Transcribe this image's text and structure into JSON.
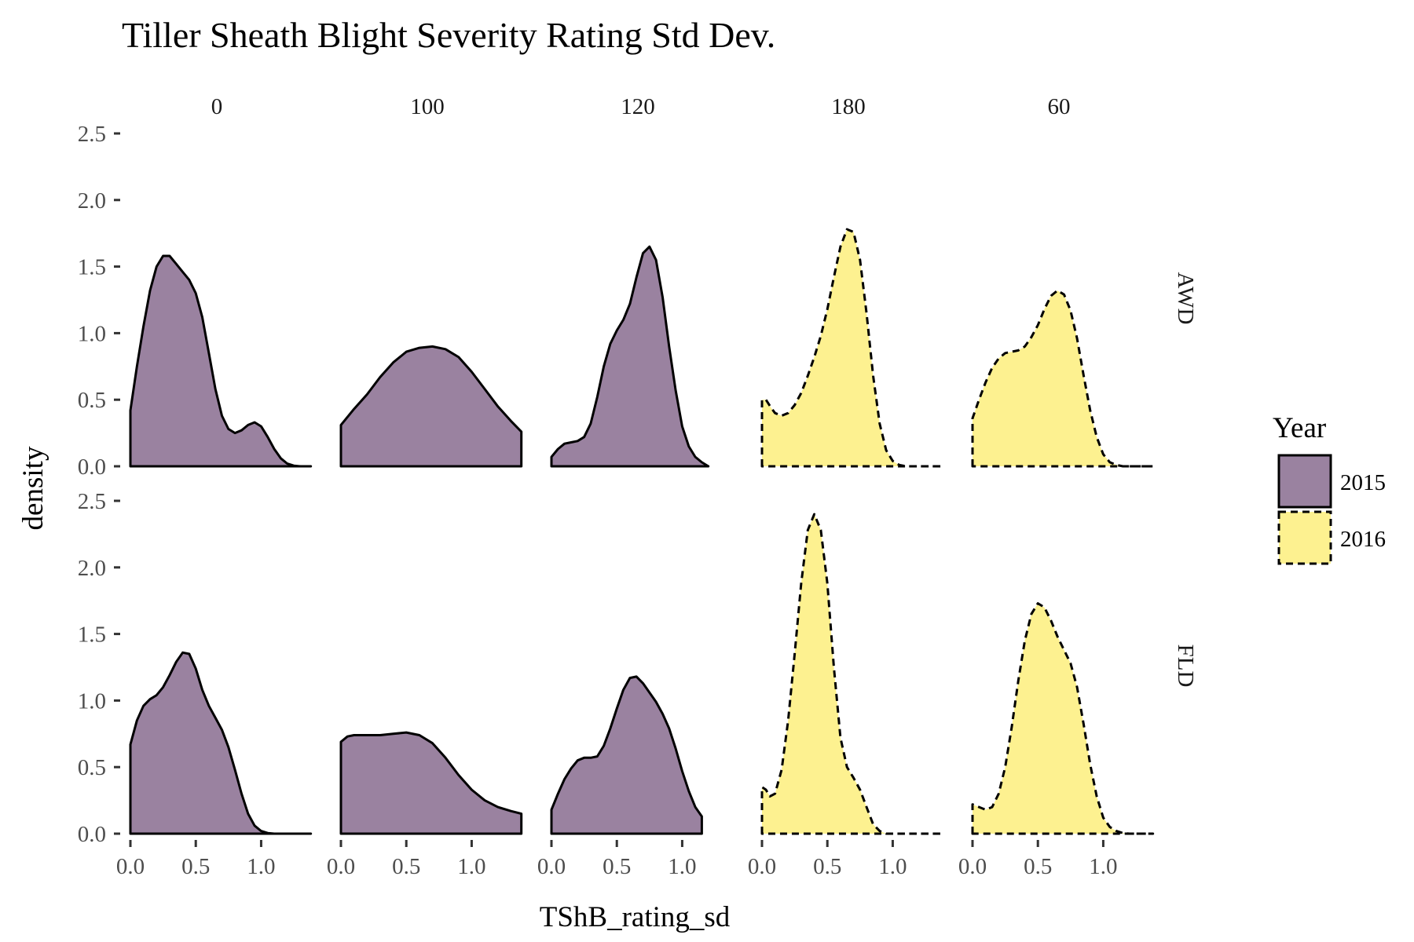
{
  "chart_data": {
    "type": "area",
    "subtype": "faceted-density",
    "title": "Tiller Sheath Blight Severity Rating Std Dev.",
    "xlabel": "TShB_rating_sd",
    "ylabel": "density",
    "xlim": [
      0,
      1.4
    ],
    "ylim": [
      0,
      2.5
    ],
    "x_ticks": [
      0.0,
      0.5,
      1.0
    ],
    "x_tick_labels": [
      "0.0",
      "0.5",
      "1.0"
    ],
    "y_ticks": [
      0.0,
      0.5,
      1.0,
      1.5,
      2.0,
      2.5
    ],
    "y_tick_labels": [
      "0.0",
      "0.5",
      "1.0",
      "1.5",
      "2.0",
      "2.5"
    ],
    "col_facets": [
      "0",
      "100",
      "120",
      "180",
      "60"
    ],
    "row_facets": [
      "AWD",
      "FLD"
    ],
    "grid": false,
    "legend": {
      "title": "Year",
      "position": "right",
      "entries": [
        {
          "label": "2015",
          "fill": "#9a82a0",
          "linestyle": "solid"
        },
        {
          "label": "2016",
          "fill": "#fdf190",
          "linestyle": "dashed"
        }
      ]
    },
    "panels": [
      {
        "row": "AWD",
        "col": "0",
        "year": "2015",
        "points": [
          [
            0.0,
            0.42
          ],
          [
            0.05,
            0.75
          ],
          [
            0.1,
            1.05
          ],
          [
            0.15,
            1.32
          ],
          [
            0.2,
            1.5
          ],
          [
            0.25,
            1.58
          ],
          [
            0.3,
            1.58
          ],
          [
            0.35,
            1.52
          ],
          [
            0.4,
            1.46
          ],
          [
            0.45,
            1.4
          ],
          [
            0.5,
            1.3
          ],
          [
            0.55,
            1.12
          ],
          [
            0.6,
            0.85
          ],
          [
            0.65,
            0.58
          ],
          [
            0.7,
            0.38
          ],
          [
            0.75,
            0.28
          ],
          [
            0.8,
            0.25
          ],
          [
            0.85,
            0.27
          ],
          [
            0.9,
            0.31
          ],
          [
            0.95,
            0.33
          ],
          [
            1.0,
            0.3
          ],
          [
            1.05,
            0.22
          ],
          [
            1.1,
            0.13
          ],
          [
            1.15,
            0.06
          ],
          [
            1.2,
            0.02
          ],
          [
            1.25,
            0.005
          ],
          [
            1.3,
            0.0
          ],
          [
            1.38,
            0.0
          ]
        ]
      },
      {
        "row": "AWD",
        "col": "100",
        "year": "2015",
        "points": [
          [
            0.0,
            0.31
          ],
          [
            0.1,
            0.43
          ],
          [
            0.2,
            0.54
          ],
          [
            0.3,
            0.67
          ],
          [
            0.4,
            0.78
          ],
          [
            0.5,
            0.86
          ],
          [
            0.6,
            0.89
          ],
          [
            0.7,
            0.9
          ],
          [
            0.8,
            0.88
          ],
          [
            0.9,
            0.82
          ],
          [
            1.0,
            0.71
          ],
          [
            1.1,
            0.58
          ],
          [
            1.2,
            0.45
          ],
          [
            1.3,
            0.34
          ],
          [
            1.38,
            0.26
          ]
        ]
      },
      {
        "row": "AWD",
        "col": "120",
        "year": "2015",
        "points": [
          [
            0.0,
            0.07
          ],
          [
            0.05,
            0.13
          ],
          [
            0.1,
            0.17
          ],
          [
            0.15,
            0.18
          ],
          [
            0.2,
            0.19
          ],
          [
            0.25,
            0.22
          ],
          [
            0.3,
            0.32
          ],
          [
            0.35,
            0.52
          ],
          [
            0.4,
            0.75
          ],
          [
            0.45,
            0.92
          ],
          [
            0.5,
            1.02
          ],
          [
            0.55,
            1.1
          ],
          [
            0.6,
            1.22
          ],
          [
            0.65,
            1.42
          ],
          [
            0.7,
            1.6
          ],
          [
            0.75,
            1.65
          ],
          [
            0.8,
            1.55
          ],
          [
            0.85,
            1.27
          ],
          [
            0.9,
            0.9
          ],
          [
            0.95,
            0.57
          ],
          [
            1.0,
            0.3
          ],
          [
            1.05,
            0.15
          ],
          [
            1.1,
            0.07
          ],
          [
            1.15,
            0.03
          ],
          [
            1.2,
            0.0
          ]
        ]
      },
      {
        "row": "AWD",
        "col": "180",
        "year": "2016",
        "points": [
          [
            0.0,
            0.5
          ],
          [
            0.03,
            0.5
          ],
          [
            0.07,
            0.44
          ],
          [
            0.1,
            0.4
          ],
          [
            0.15,
            0.38
          ],
          [
            0.2,
            0.4
          ],
          [
            0.25,
            0.46
          ],
          [
            0.3,
            0.55
          ],
          [
            0.35,
            0.68
          ],
          [
            0.4,
            0.82
          ],
          [
            0.45,
            0.98
          ],
          [
            0.5,
            1.18
          ],
          [
            0.55,
            1.42
          ],
          [
            0.6,
            1.65
          ],
          [
            0.65,
            1.78
          ],
          [
            0.7,
            1.76
          ],
          [
            0.75,
            1.55
          ],
          [
            0.8,
            1.15
          ],
          [
            0.85,
            0.68
          ],
          [
            0.9,
            0.32
          ],
          [
            0.95,
            0.12
          ],
          [
            1.0,
            0.04
          ],
          [
            1.05,
            0.01
          ],
          [
            1.1,
            0.0
          ],
          [
            1.38,
            0.0
          ]
        ]
      },
      {
        "row": "AWD",
        "col": "60",
        "year": "2016",
        "points": [
          [
            0.0,
            0.36
          ],
          [
            0.05,
            0.5
          ],
          [
            0.1,
            0.63
          ],
          [
            0.15,
            0.74
          ],
          [
            0.2,
            0.81
          ],
          [
            0.25,
            0.85
          ],
          [
            0.3,
            0.86
          ],
          [
            0.35,
            0.87
          ],
          [
            0.4,
            0.9
          ],
          [
            0.45,
            0.97
          ],
          [
            0.5,
            1.06
          ],
          [
            0.55,
            1.18
          ],
          [
            0.6,
            1.28
          ],
          [
            0.65,
            1.32
          ],
          [
            0.7,
            1.29
          ],
          [
            0.75,
            1.17
          ],
          [
            0.8,
            0.96
          ],
          [
            0.85,
            0.68
          ],
          [
            0.9,
            0.42
          ],
          [
            0.95,
            0.22
          ],
          [
            1.0,
            0.09
          ],
          [
            1.05,
            0.03
          ],
          [
            1.1,
            0.01
          ],
          [
            1.15,
            0.0
          ],
          [
            1.38,
            0.0
          ]
        ]
      },
      {
        "row": "FLD",
        "col": "0",
        "year": "2015",
        "points": [
          [
            0.0,
            0.67
          ],
          [
            0.05,
            0.85
          ],
          [
            0.1,
            0.96
          ],
          [
            0.15,
            1.01
          ],
          [
            0.2,
            1.04
          ],
          [
            0.25,
            1.1
          ],
          [
            0.3,
            1.19
          ],
          [
            0.35,
            1.29
          ],
          [
            0.4,
            1.36
          ],
          [
            0.45,
            1.35
          ],
          [
            0.5,
            1.24
          ],
          [
            0.55,
            1.08
          ],
          [
            0.6,
            0.96
          ],
          [
            0.65,
            0.87
          ],
          [
            0.7,
            0.78
          ],
          [
            0.75,
            0.65
          ],
          [
            0.8,
            0.48
          ],
          [
            0.85,
            0.3
          ],
          [
            0.9,
            0.15
          ],
          [
            0.95,
            0.06
          ],
          [
            1.0,
            0.02
          ],
          [
            1.05,
            0.005
          ],
          [
            1.1,
            0.0
          ],
          [
            1.38,
            0.0
          ]
        ]
      },
      {
        "row": "FLD",
        "col": "100",
        "year": "2015",
        "points": [
          [
            0.0,
            0.69
          ],
          [
            0.05,
            0.73
          ],
          [
            0.1,
            0.74
          ],
          [
            0.2,
            0.74
          ],
          [
            0.3,
            0.74
          ],
          [
            0.4,
            0.75
          ],
          [
            0.5,
            0.76
          ],
          [
            0.6,
            0.74
          ],
          [
            0.7,
            0.68
          ],
          [
            0.8,
            0.57
          ],
          [
            0.9,
            0.44
          ],
          [
            1.0,
            0.33
          ],
          [
            1.1,
            0.25
          ],
          [
            1.2,
            0.2
          ],
          [
            1.3,
            0.17
          ],
          [
            1.38,
            0.15
          ]
        ]
      },
      {
        "row": "FLD",
        "col": "120",
        "year": "2015",
        "points": [
          [
            0.0,
            0.18
          ],
          [
            0.05,
            0.3
          ],
          [
            0.1,
            0.41
          ],
          [
            0.15,
            0.49
          ],
          [
            0.2,
            0.55
          ],
          [
            0.25,
            0.57
          ],
          [
            0.3,
            0.57
          ],
          [
            0.35,
            0.58
          ],
          [
            0.4,
            0.66
          ],
          [
            0.45,
            0.79
          ],
          [
            0.5,
            0.94
          ],
          [
            0.55,
            1.08
          ],
          [
            0.6,
            1.17
          ],
          [
            0.65,
            1.18
          ],
          [
            0.7,
            1.13
          ],
          [
            0.75,
            1.06
          ],
          [
            0.8,
            0.99
          ],
          [
            0.85,
            0.9
          ],
          [
            0.9,
            0.79
          ],
          [
            0.95,
            0.64
          ],
          [
            1.0,
            0.47
          ],
          [
            1.05,
            0.32
          ],
          [
            1.1,
            0.2
          ],
          [
            1.15,
            0.13
          ]
        ]
      },
      {
        "row": "FLD",
        "col": "180",
        "year": "2016",
        "points": [
          [
            0.0,
            0.35
          ],
          [
            0.03,
            0.33
          ],
          [
            0.06,
            0.28
          ],
          [
            0.1,
            0.3
          ],
          [
            0.15,
            0.48
          ],
          [
            0.2,
            0.85
          ],
          [
            0.25,
            1.35
          ],
          [
            0.3,
            1.88
          ],
          [
            0.35,
            2.28
          ],
          [
            0.4,
            2.4
          ],
          [
            0.45,
            2.28
          ],
          [
            0.5,
            1.88
          ],
          [
            0.55,
            1.25
          ],
          [
            0.6,
            0.72
          ],
          [
            0.65,
            0.5
          ],
          [
            0.7,
            0.42
          ],
          [
            0.75,
            0.33
          ],
          [
            0.8,
            0.2
          ],
          [
            0.85,
            0.07
          ],
          [
            0.9,
            0.02
          ],
          [
            0.95,
            0.0
          ],
          [
            1.38,
            0.0
          ]
        ]
      },
      {
        "row": "FLD",
        "col": "60",
        "year": "2016",
        "points": [
          [
            0.0,
            0.22
          ],
          [
            0.05,
            0.2
          ],
          [
            0.1,
            0.18
          ],
          [
            0.15,
            0.2
          ],
          [
            0.2,
            0.3
          ],
          [
            0.25,
            0.5
          ],
          [
            0.3,
            0.8
          ],
          [
            0.35,
            1.15
          ],
          [
            0.4,
            1.45
          ],
          [
            0.45,
            1.65
          ],
          [
            0.5,
            1.73
          ],
          [
            0.55,
            1.7
          ],
          [
            0.6,
            1.6
          ],
          [
            0.65,
            1.48
          ],
          [
            0.7,
            1.38
          ],
          [
            0.75,
            1.28
          ],
          [
            0.8,
            1.1
          ],
          [
            0.85,
            0.82
          ],
          [
            0.9,
            0.52
          ],
          [
            0.95,
            0.28
          ],
          [
            1.0,
            0.12
          ],
          [
            1.05,
            0.05
          ],
          [
            1.1,
            0.02
          ],
          [
            1.15,
            0.005
          ],
          [
            1.2,
            0.0
          ],
          [
            1.38,
            0.0
          ]
        ]
      }
    ]
  }
}
